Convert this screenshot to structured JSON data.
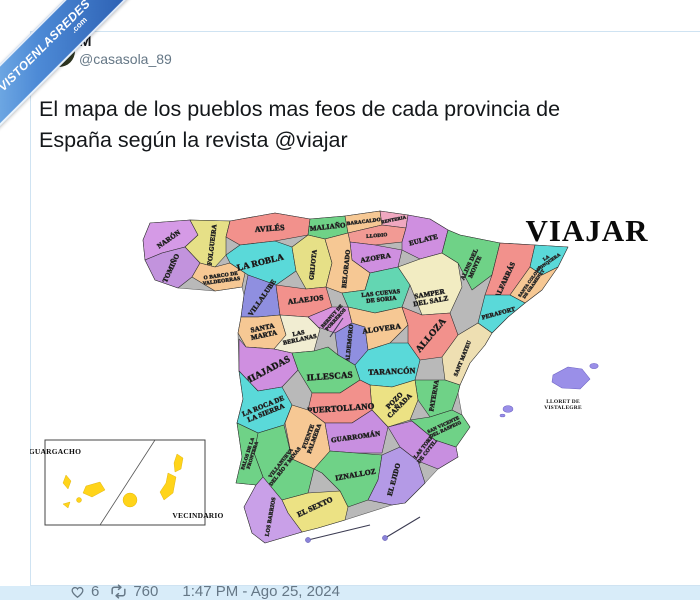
{
  "watermark": {
    "line1": "VISTOENLASREDES",
    "line2": ".com"
  },
  "header": {
    "display_name": "M",
    "handle": "@casasola_89"
  },
  "tweet": {
    "line1": "El mapa de los pueblos mas feos de cada provincia de",
    "line2": "España según la revista @viajar"
  },
  "map": {
    "logo": "VIAJAR",
    "provinces": [
      {
        "town": "NARÓN"
      },
      {
        "town": "FOLGUEIRA"
      },
      {
        "town": "TOMIÑO"
      },
      {
        "town": "O BARCO DE|VALDEORRAS"
      },
      {
        "town": "AVILÉS"
      },
      {
        "town": "LA ROBLA"
      },
      {
        "town": "MALIAÑO"
      },
      {
        "town": "BARACALDO"
      },
      {
        "town": "RENTERIA"
      },
      {
        "town": "LLODIO"
      },
      {
        "town": "EULATE"
      },
      {
        "town": "AZOFRA"
      },
      {
        "town": "GRIJOTA"
      },
      {
        "town": "BELORADO"
      },
      {
        "town": "LAS CUEVAS|DE SORIA"
      },
      {
        "town": "SAMPER|DEL SALZ"
      },
      {
        "town": "ALINS DEL|MONTE"
      },
      {
        "town": "ALFARRÁS"
      },
      {
        "town": "LA|JONQUERA"
      },
      {
        "town": "SANTA COLOMA|DE GRAMENET"
      },
      {
        "town": "PERAFORT"
      },
      {
        "town": "VILLALUBE"
      },
      {
        "town": "ALAEJOS"
      },
      {
        "town": "BERNUY DE|PORREROS"
      },
      {
        "town": "VALDEMORO"
      },
      {
        "town": "ALOVERA"
      },
      {
        "town": "ALLOZA"
      },
      {
        "town": "SANTA|MARTA"
      },
      {
        "town": "LAS|BERLANAS"
      },
      {
        "town": "MIAJADAS"
      },
      {
        "town": "ILLESCAS"
      },
      {
        "town": "TARANCÓN"
      },
      {
        "town": "SANT MATEU"
      },
      {
        "town": "PATERNA"
      },
      {
        "town": "POZO|CAÑADA"
      },
      {
        "town": "PUERTOLLANO"
      },
      {
        "town": "LA ROCA DE|LA SIERRA"
      },
      {
        "town": "FUENTE|PALMERA"
      },
      {
        "town": "GUARROMÁN"
      },
      {
        "town": "VILLANUEVA|DEL RÍO Y MINAS"
      },
      {
        "town": "PALOS DE LA|FRONTERA"
      },
      {
        "town": "IZNALLOZ"
      },
      {
        "town": "EL EJIDO"
      },
      {
        "town": "LAS TORRES|DE COTILLAS"
      },
      {
        "town": "SAN VICENTE|DEL RASPEIG"
      },
      {
        "town": "EL SEXTO"
      },
      {
        "town": "LOS BARRIOS"
      }
    ],
    "balearics_label": "LLORET DE|VISTALEGRE",
    "canary_inset": {
      "label_left": "GUARGACHO",
      "label_right": "VECINDARIO"
    }
  },
  "footer": {
    "likes": "6",
    "retweets": "760",
    "timestamp": "1:47 PM - Ago 25, 2024"
  },
  "colors": {
    "ribbon_blue": "#3f7fd2",
    "strip_blue": "#d8ecf9",
    "canary_yellow": "#ffd41a",
    "balearic_purple": "#9a8fe8",
    "text_gray": "#657786"
  }
}
